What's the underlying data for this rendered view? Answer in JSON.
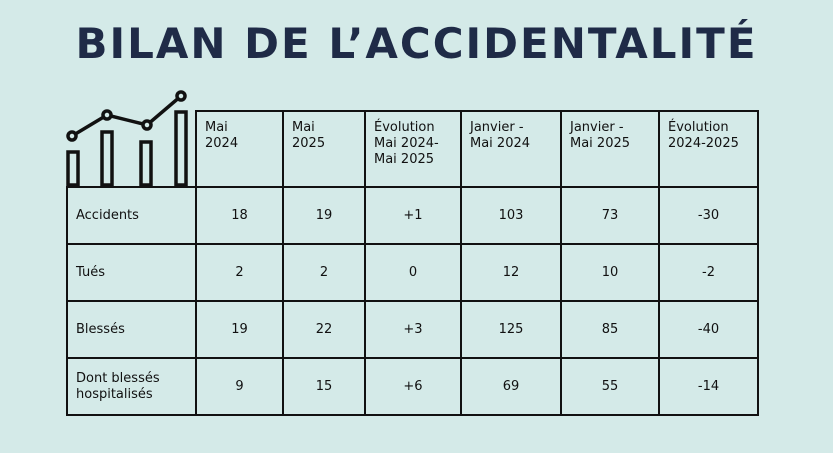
{
  "title": "BILAN DE L’ACCIDENTALITÉ",
  "table": {
    "headers": [
      "Mai\n2024",
      "Mai\n2025",
      "Évolution\nMai 2024-\nMai 2025",
      "Janvier -\nMai 2024",
      "Janvier -\nMai 2025",
      "Évolution\n2024-2025"
    ],
    "rows": [
      [
        "Accidents",
        "18",
        "19",
        "+1",
        "103",
        "73",
        "-30"
      ],
      [
        "Tués",
        "2",
        "2",
        "0",
        "12",
        "10",
        "-2"
      ],
      [
        "Blessés",
        "19",
        "22",
        "+3",
        "125",
        "85",
        "-40"
      ],
      [
        "Dont blessés\nhospitalisés",
        "9",
        "15",
        "+6",
        "69",
        "55",
        "-14"
      ]
    ]
  }
}
